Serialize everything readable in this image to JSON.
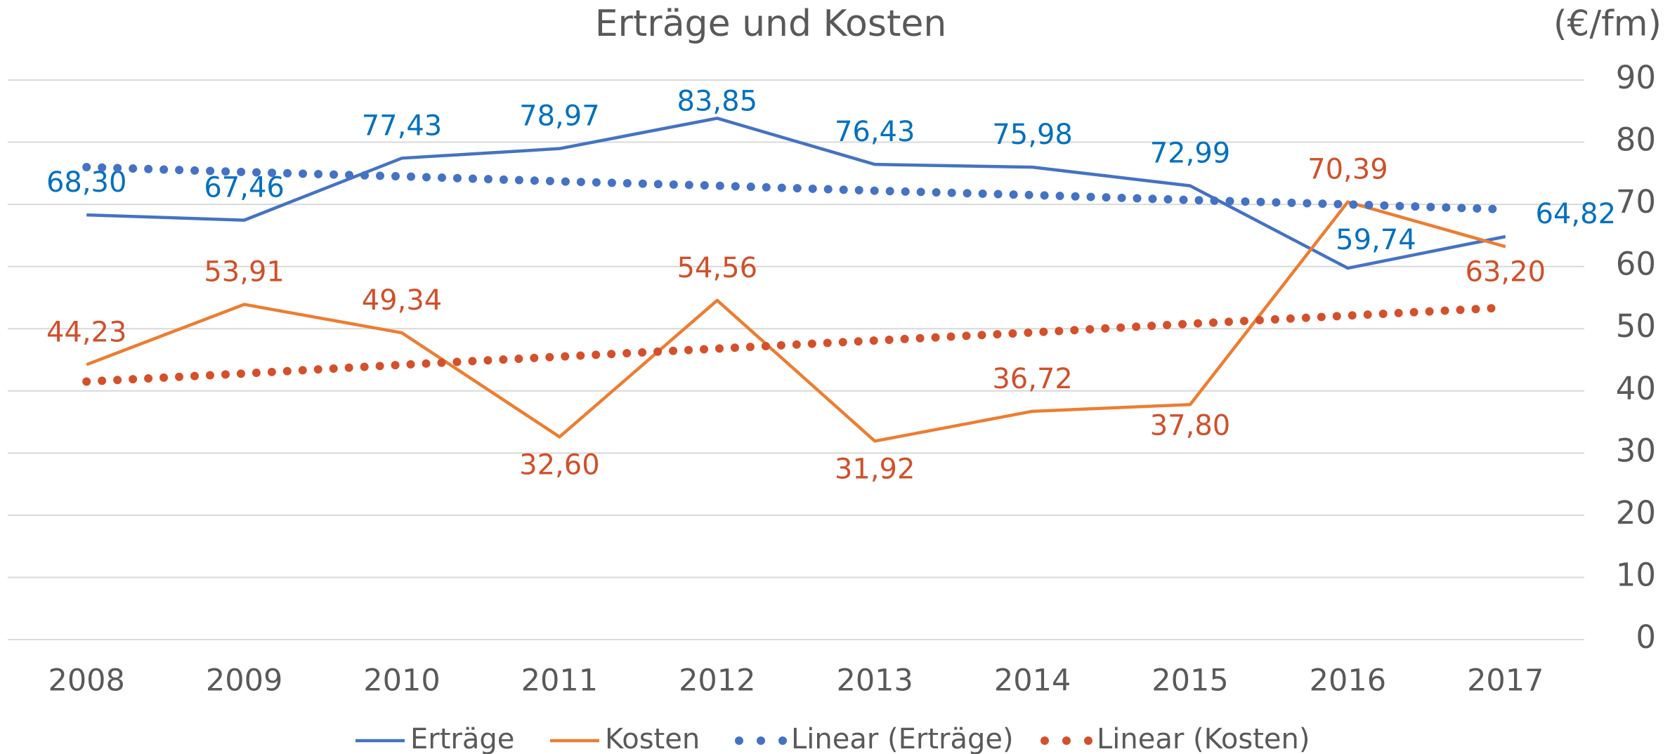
{
  "chart_data": {
    "type": "line",
    "title": "Erträge und Kosten",
    "ylabel": "(€/fm)",
    "categories": [
      "2008",
      "2009",
      "2010",
      "2011",
      "2012",
      "2013",
      "2014",
      "2015",
      "2016",
      "2017"
    ],
    "series": [
      {
        "name": "Erträge",
        "color": "#4472c4",
        "label_color": "#0070c0",
        "style": "solid",
        "values": [
          68.3,
          67.46,
          77.43,
          78.97,
          83.85,
          76.43,
          75.98,
          72.99,
          59.74,
          64.82
        ],
        "value_labels": [
          "68,30",
          "67,46",
          "77,43",
          "78,97",
          "83,85",
          "76,43",
          "75,98",
          "72,99",
          "59,74",
          "64,82"
        ]
      },
      {
        "name": "Kosten",
        "color": "#ed7d31",
        "label_color": "#d0502a",
        "style": "solid",
        "values": [
          44.23,
          53.91,
          49.34,
          32.6,
          54.56,
          31.92,
          36.72,
          37.8,
          70.39,
          63.2
        ],
        "value_labels": [
          "44,23",
          "53,91",
          "49,34",
          "32,60",
          "54,56",
          "31,92",
          "36,72",
          "37,80",
          "70,39",
          "63,20"
        ]
      },
      {
        "name": "Linear (Erträge)",
        "color": "#4472c4",
        "style": "dotted",
        "values": [
          76.0,
          75.2,
          74.5,
          73.7,
          73.0,
          72.2,
          71.5,
          70.7,
          70.0,
          69.2
        ]
      },
      {
        "name": "Linear (Kosten)",
        "color": "#d4502b",
        "style": "dotted",
        "values": [
          41.5,
          42.8,
          44.2,
          45.5,
          46.8,
          48.1,
          49.4,
          50.8,
          52.1,
          53.4
        ]
      }
    ],
    "ylim": [
      0,
      90
    ],
    "yticks": [
      0,
      10,
      20,
      30,
      40,
      50,
      60,
      70,
      80,
      90
    ],
    "grid": true,
    "yaxis_side": "right",
    "legend": "bottom"
  }
}
